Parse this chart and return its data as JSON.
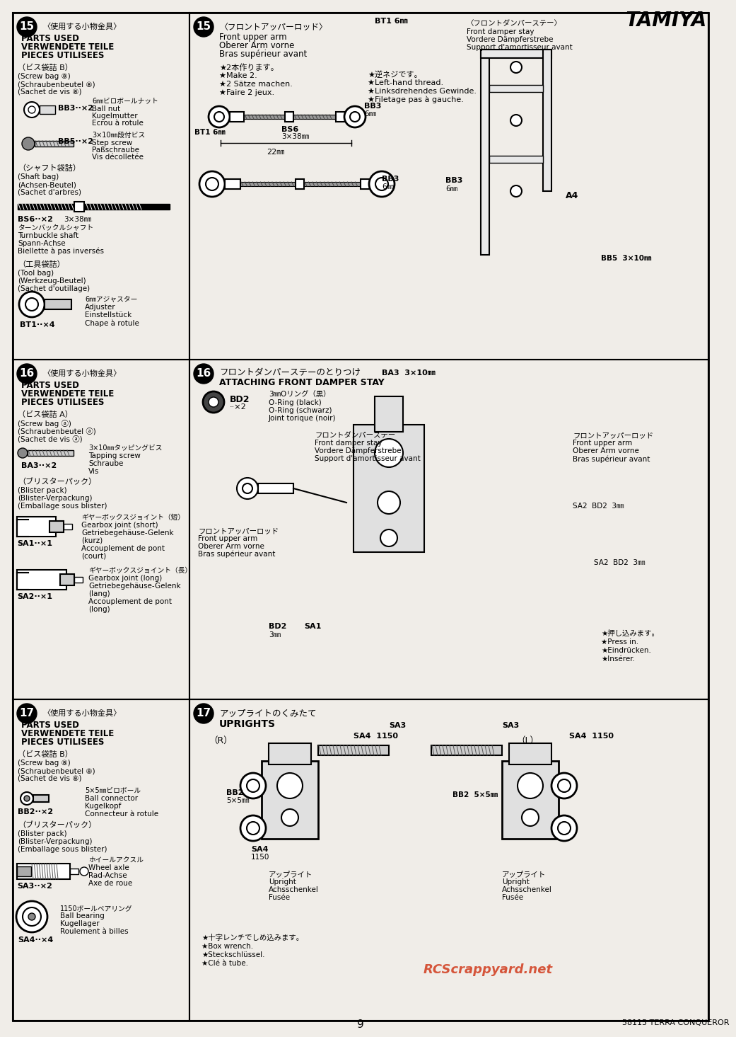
{
  "title": "TAMIYA",
  "page_number": "9",
  "model_name": "58115 TERRA CONQUEROR",
  "bg": "#f0ede8",
  "watermark": "RCScrappyard.net",
  "wm_color": "#cc2200"
}
